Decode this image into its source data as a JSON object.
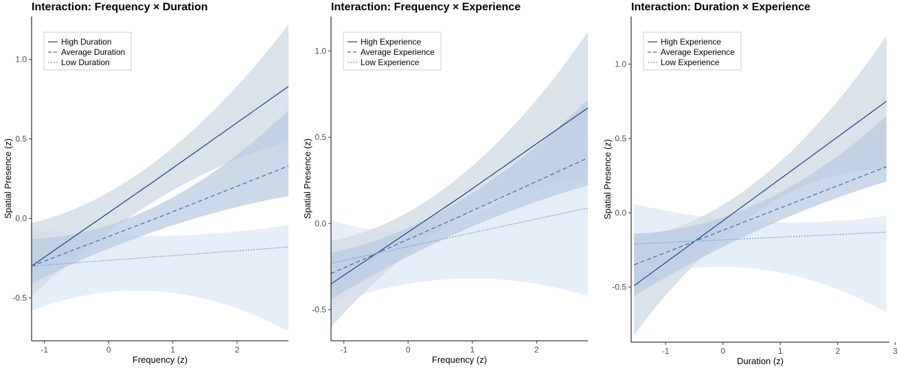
{
  "chart_data": [
    {
      "type": "line",
      "title": "Interaction: Frequency × Duration",
      "xlabel": "Frequency (z)",
      "ylabel": "Spatial Presence (z)",
      "xlim": [
        -1.2,
        2.8
      ],
      "ylim": [
        -0.77,
        1.27
      ],
      "xticks": [
        -1,
        0,
        1,
        2
      ],
      "yticks": [
        -0.5,
        0.0,
        0.5,
        1.0
      ],
      "xtick_labels": [
        "-1",
        "0",
        "1",
        "2"
      ],
      "ytick_labels": [
        "-0.5",
        "0.0",
        "0.5",
        "1.0"
      ],
      "grid": false,
      "legend_position": "top-left",
      "series": [
        {
          "name": "High Duration",
          "style": "solid",
          "color": "#1F4E8C",
          "band_color": "#D3DDE6",
          "x": [
            -1.2,
            0.8,
            2.8
          ],
          "y": [
            -0.3,
            0.26,
            0.83
          ],
          "lower": [
            -0.49,
            0.13,
            0.48
          ],
          "upper": [
            -0.03,
            0.38,
            1.22
          ]
        },
        {
          "name": "Average Duration",
          "style": "dashed",
          "color": "#3D6FAF",
          "band_color": "#BACCE2",
          "x": [
            -1.2,
            0.8,
            2.8
          ],
          "y": [
            -0.3,
            0.01,
            0.33
          ],
          "lower": [
            -0.41,
            -0.07,
            0.14
          ],
          "upper": [
            -0.13,
            0.09,
            0.68
          ]
        },
        {
          "name": "Low Duration",
          "style": "dotted",
          "color": "#6EA0D3",
          "band_color": "#E2ECF6",
          "x": [
            -1.2,
            0.8,
            2.8
          ],
          "y": [
            -0.3,
            -0.24,
            -0.18
          ],
          "lower": [
            -0.58,
            -0.46,
            -0.71
          ],
          "upper": [
            -0.06,
            -0.11,
            -0.04
          ]
        }
      ]
    },
    {
      "type": "line",
      "title": "Interaction: Frequency × Experience",
      "xlabel": "Frequency (z)",
      "ylabel": "Spatial Presence (z)",
      "xlim": [
        -1.2,
        2.8
      ],
      "ylim": [
        -0.68,
        1.2
      ],
      "xticks": [
        -1,
        0,
        1,
        2
      ],
      "yticks": [
        -0.5,
        0.0,
        0.5,
        1.0
      ],
      "xtick_labels": [
        "-1",
        "0",
        "1",
        "2"
      ],
      "ytick_labels": [
        "-0.5",
        "0.0",
        "0.5",
        "1.0"
      ],
      "grid": false,
      "legend_position": "top-left",
      "series": [
        {
          "name": "High Experience",
          "style": "solid",
          "color": "#1F4E8C",
          "band_color": "#D3DDE6",
          "x": [
            -1.2,
            0.8,
            2.8
          ],
          "y": [
            -0.35,
            0.15,
            0.67
          ],
          "lower": [
            -0.6,
            0.03,
            0.26
          ],
          "upper": [
            -0.1,
            0.27,
            1.11
          ]
        },
        {
          "name": "Average Experience",
          "style": "dashed",
          "color": "#3D6FAF",
          "band_color": "#BACCE2",
          "x": [
            -1.2,
            0.8,
            2.8
          ],
          "y": [
            -0.29,
            0.04,
            0.38
          ],
          "lower": [
            -0.44,
            -0.05,
            0.22
          ],
          "upper": [
            -0.17,
            0.13,
            0.72
          ]
        },
        {
          "name": "Low Experience",
          "style": "dotted",
          "color": "#6EA0D3",
          "band_color": "#E2ECF6",
          "x": [
            -1.2,
            0.8,
            2.8
          ],
          "y": [
            -0.23,
            -0.07,
            0.09
          ],
          "lower": [
            -0.47,
            -0.32,
            -0.42
          ],
          "upper": [
            0.02,
            0.02,
            0.52
          ]
        }
      ]
    },
    {
      "type": "line",
      "title": "Interaction: Duration × Experience",
      "xlabel": "Duration (z)",
      "ylabel": "Spatial Presence (z)",
      "xlim": [
        -1.6,
        2.9
      ],
      "ylim": [
        -0.87,
        1.32
      ],
      "xticks": [
        -1,
        0,
        1,
        2,
        3
      ],
      "yticks": [
        -0.5,
        0.0,
        0.5,
        1.0
      ],
      "xtick_labels": [
        "-1",
        "0",
        "1",
        "2",
        "3"
      ],
      "ytick_labels": [
        "-0.5",
        "0.0",
        "0.5",
        "1.0"
      ],
      "grid": false,
      "legend_position": "top-left",
      "series": [
        {
          "name": "High Experience",
          "style": "solid",
          "color": "#1F4E8C",
          "band_color": "#D3DDE6",
          "x": [
            -1.55,
            0.65,
            2.85
          ],
          "y": [
            -0.49,
            0.13,
            0.75
          ],
          "lower": [
            -0.82,
            0.02,
            0.29
          ],
          "upper": [
            -0.17,
            0.23,
            1.19
          ]
        },
        {
          "name": "Average Experience",
          "style": "dashed",
          "color": "#3D6FAF",
          "band_color": "#BACCE2",
          "x": [
            -1.55,
            0.65,
            2.85
          ],
          "y": [
            -0.35,
            -0.02,
            0.31
          ],
          "lower": [
            -0.56,
            -0.11,
            0.21
          ],
          "upper": [
            -0.14,
            0.07,
            0.65
          ]
        },
        {
          "name": "Low Experience",
          "style": "dotted",
          "color": "#6EA0D3",
          "band_color": "#E2ECF6",
          "x": [
            -1.55,
            0.65,
            2.85
          ],
          "y": [
            -0.21,
            -0.17,
            -0.13
          ],
          "lower": [
            -0.45,
            -0.38,
            -0.67
          ],
          "upper": [
            0.06,
            -0.06,
            -0.02
          ]
        }
      ]
    }
  ]
}
